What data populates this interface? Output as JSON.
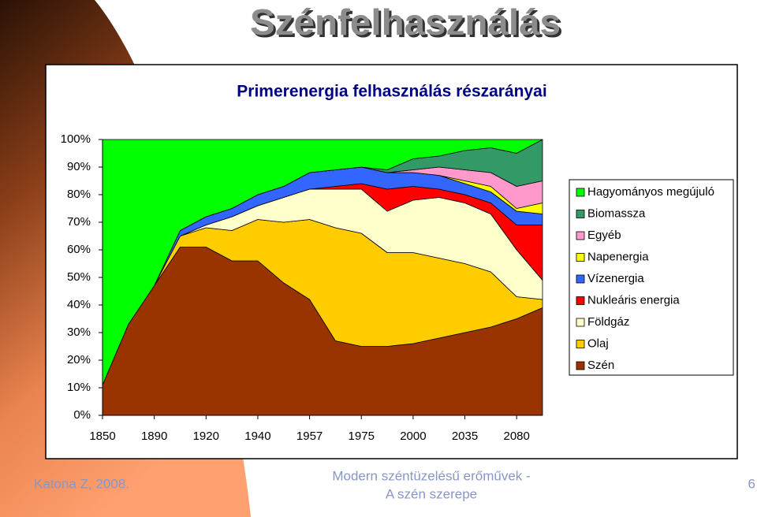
{
  "slide": {
    "title": "Szénfelhasználás",
    "footer": {
      "left": "Katona Z, 2008.",
      "center": [
        "Modern széntüzelésű erőművek -",
        "A szén szerepe"
      ],
      "right": "6"
    }
  },
  "chart_data": {
    "type": "area",
    "stacked": true,
    "legend": "right",
    "title": "Primerenergia felhasználás részarányai",
    "categories": [
      "1850",
      null,
      "1890",
      null,
      "1920",
      null,
      "1940",
      null,
      "1957",
      null,
      "1975",
      null,
      "2000",
      null,
      "2035",
      null,
      "2080",
      null
    ],
    "ylim": [
      0,
      100
    ],
    "yticks": [
      {
        "value": 0,
        "label": "0%"
      },
      {
        "value": 10,
        "label": "10%"
      },
      {
        "value": 20,
        "label": "20%"
      },
      {
        "value": 30,
        "label": "30%"
      },
      {
        "value": 40,
        "label": "40%"
      },
      {
        "value": 50,
        "label": "50%"
      },
      {
        "value": 60,
        "label": "60%"
      },
      {
        "value": 70,
        "label": "70%"
      },
      {
        "value": 80,
        "label": "80%"
      },
      {
        "value": 90,
        "label": "90%"
      },
      {
        "value": 100,
        "label": "100%"
      }
    ],
    "series": [
      {
        "name": "Szén",
        "color": "#993300",
        "values": [
          11,
          33,
          47,
          61,
          61,
          56,
          56,
          48,
          42,
          27,
          25,
          25,
          26,
          28,
          30,
          32,
          35,
          39
        ]
      },
      {
        "name": "Olaj",
        "color": "#ffcc00",
        "values": [
          0,
          0,
          0,
          4,
          7,
          11,
          15,
          22,
          29,
          41,
          41,
          34,
          33,
          29,
          25,
          20,
          8,
          3
        ]
      },
      {
        "name": "Földgáz",
        "color": "#ffffcc",
        "values": [
          0,
          0,
          0,
          0,
          1,
          5,
          5,
          9,
          11,
          14,
          16,
          15,
          19,
          22,
          22,
          21,
          17,
          7
        ]
      },
      {
        "name": "Nukleáris energia",
        "color": "#ff0000",
        "values": [
          0,
          0,
          0,
          0,
          0,
          0,
          0,
          0,
          0,
          1,
          2,
          8,
          5,
          3,
          3,
          4,
          9,
          20
        ]
      },
      {
        "name": "Vízenergia",
        "color": "#3366ff",
        "values": [
          0,
          0,
          0,
          2,
          3,
          3,
          4,
          4,
          6,
          6,
          6,
          6,
          5,
          5,
          4,
          4,
          5,
          4
        ]
      },
      {
        "name": "Napenergia",
        "color": "#ffff00",
        "values": [
          0,
          0,
          0,
          0,
          0,
          0,
          0,
          0,
          0,
          0,
          0,
          0,
          0,
          0,
          1,
          2,
          1,
          4
        ]
      },
      {
        "name": "Egyéb",
        "color": "#ff99cc",
        "values": [
          0,
          0,
          0,
          0,
          0,
          0,
          0,
          0,
          0,
          0,
          0,
          0,
          1,
          3,
          4,
          5,
          8,
          8
        ]
      },
      {
        "name": "Biomassza",
        "color": "#339966",
        "values": [
          0,
          0,
          0,
          0,
          0,
          0,
          0,
          0,
          0,
          0,
          0,
          1,
          4,
          4,
          7,
          9,
          12,
          15
        ]
      },
      {
        "name": "Hagyományos megújuló",
        "color": "#00ff00",
        "values": [
          89,
          67,
          53,
          33,
          28,
          25,
          20,
          17,
          12,
          11,
          10,
          11,
          7,
          6,
          4,
          3,
          5,
          0
        ]
      }
    ]
  }
}
